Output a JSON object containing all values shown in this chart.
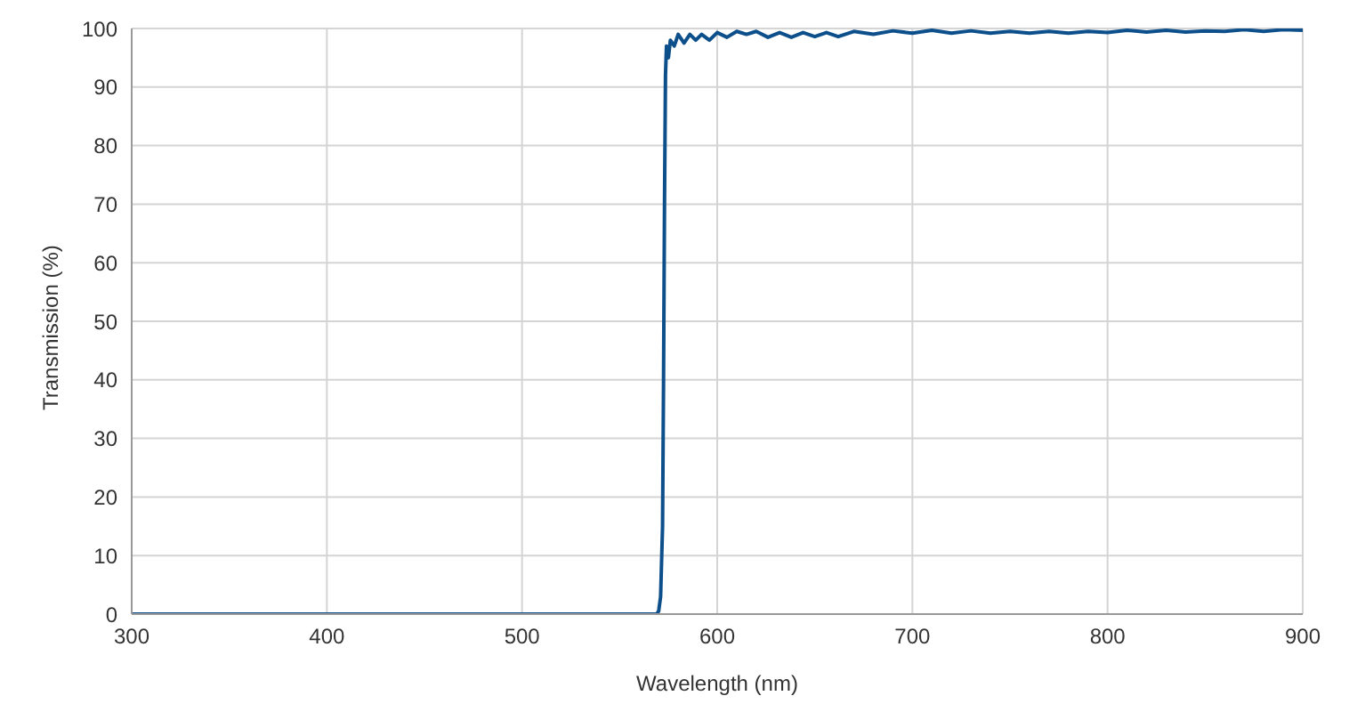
{
  "chart_data": {
    "type": "line",
    "xlabel": "Wavelength (nm)",
    "ylabel": "Transmission (%)",
    "xlim": [
      300,
      900
    ],
    "xticks": [
      300,
      400,
      500,
      600,
      700,
      800,
      900
    ],
    "ylim": [
      0,
      100
    ],
    "yticks": [
      0,
      10,
      20,
      30,
      40,
      50,
      60,
      70,
      80,
      90,
      100
    ],
    "grid": true,
    "legend": false,
    "marker": "none",
    "line_style": "solid",
    "series": [
      {
        "color": "#0d4f8b",
        "x": [
          300,
          569,
          570,
          571,
          572,
          572.5,
          573,
          573.5,
          574,
          575,
          576,
          578,
          580,
          583,
          586,
          589,
          592,
          596,
          600,
          605,
          610,
          615,
          620,
          626,
          632,
          638,
          644,
          650,
          656,
          662,
          670,
          680,
          690,
          700,
          710,
          720,
          730,
          740,
          750,
          760,
          770,
          780,
          790,
          800,
          810,
          820,
          830,
          840,
          850,
          860,
          870,
          880,
          890,
          900
        ],
        "values": [
          0,
          0,
          0.5,
          3,
          15,
          40,
          70,
          92,
          97,
          95,
          98,
          97,
          99,
          97.5,
          99,
          98,
          99,
          98,
          99.3,
          98.5,
          99.5,
          99,
          99.5,
          98.5,
          99.3,
          98.5,
          99.3,
          98.6,
          99.3,
          98.6,
          99.5,
          99,
          99.6,
          99.2,
          99.7,
          99.2,
          99.6,
          99.2,
          99.5,
          99.2,
          99.5,
          99.2,
          99.5,
          99.3,
          99.7,
          99.4,
          99.7,
          99.4,
          99.6,
          99.5,
          99.8,
          99.5,
          99.8,
          99.7
        ]
      }
    ]
  }
}
